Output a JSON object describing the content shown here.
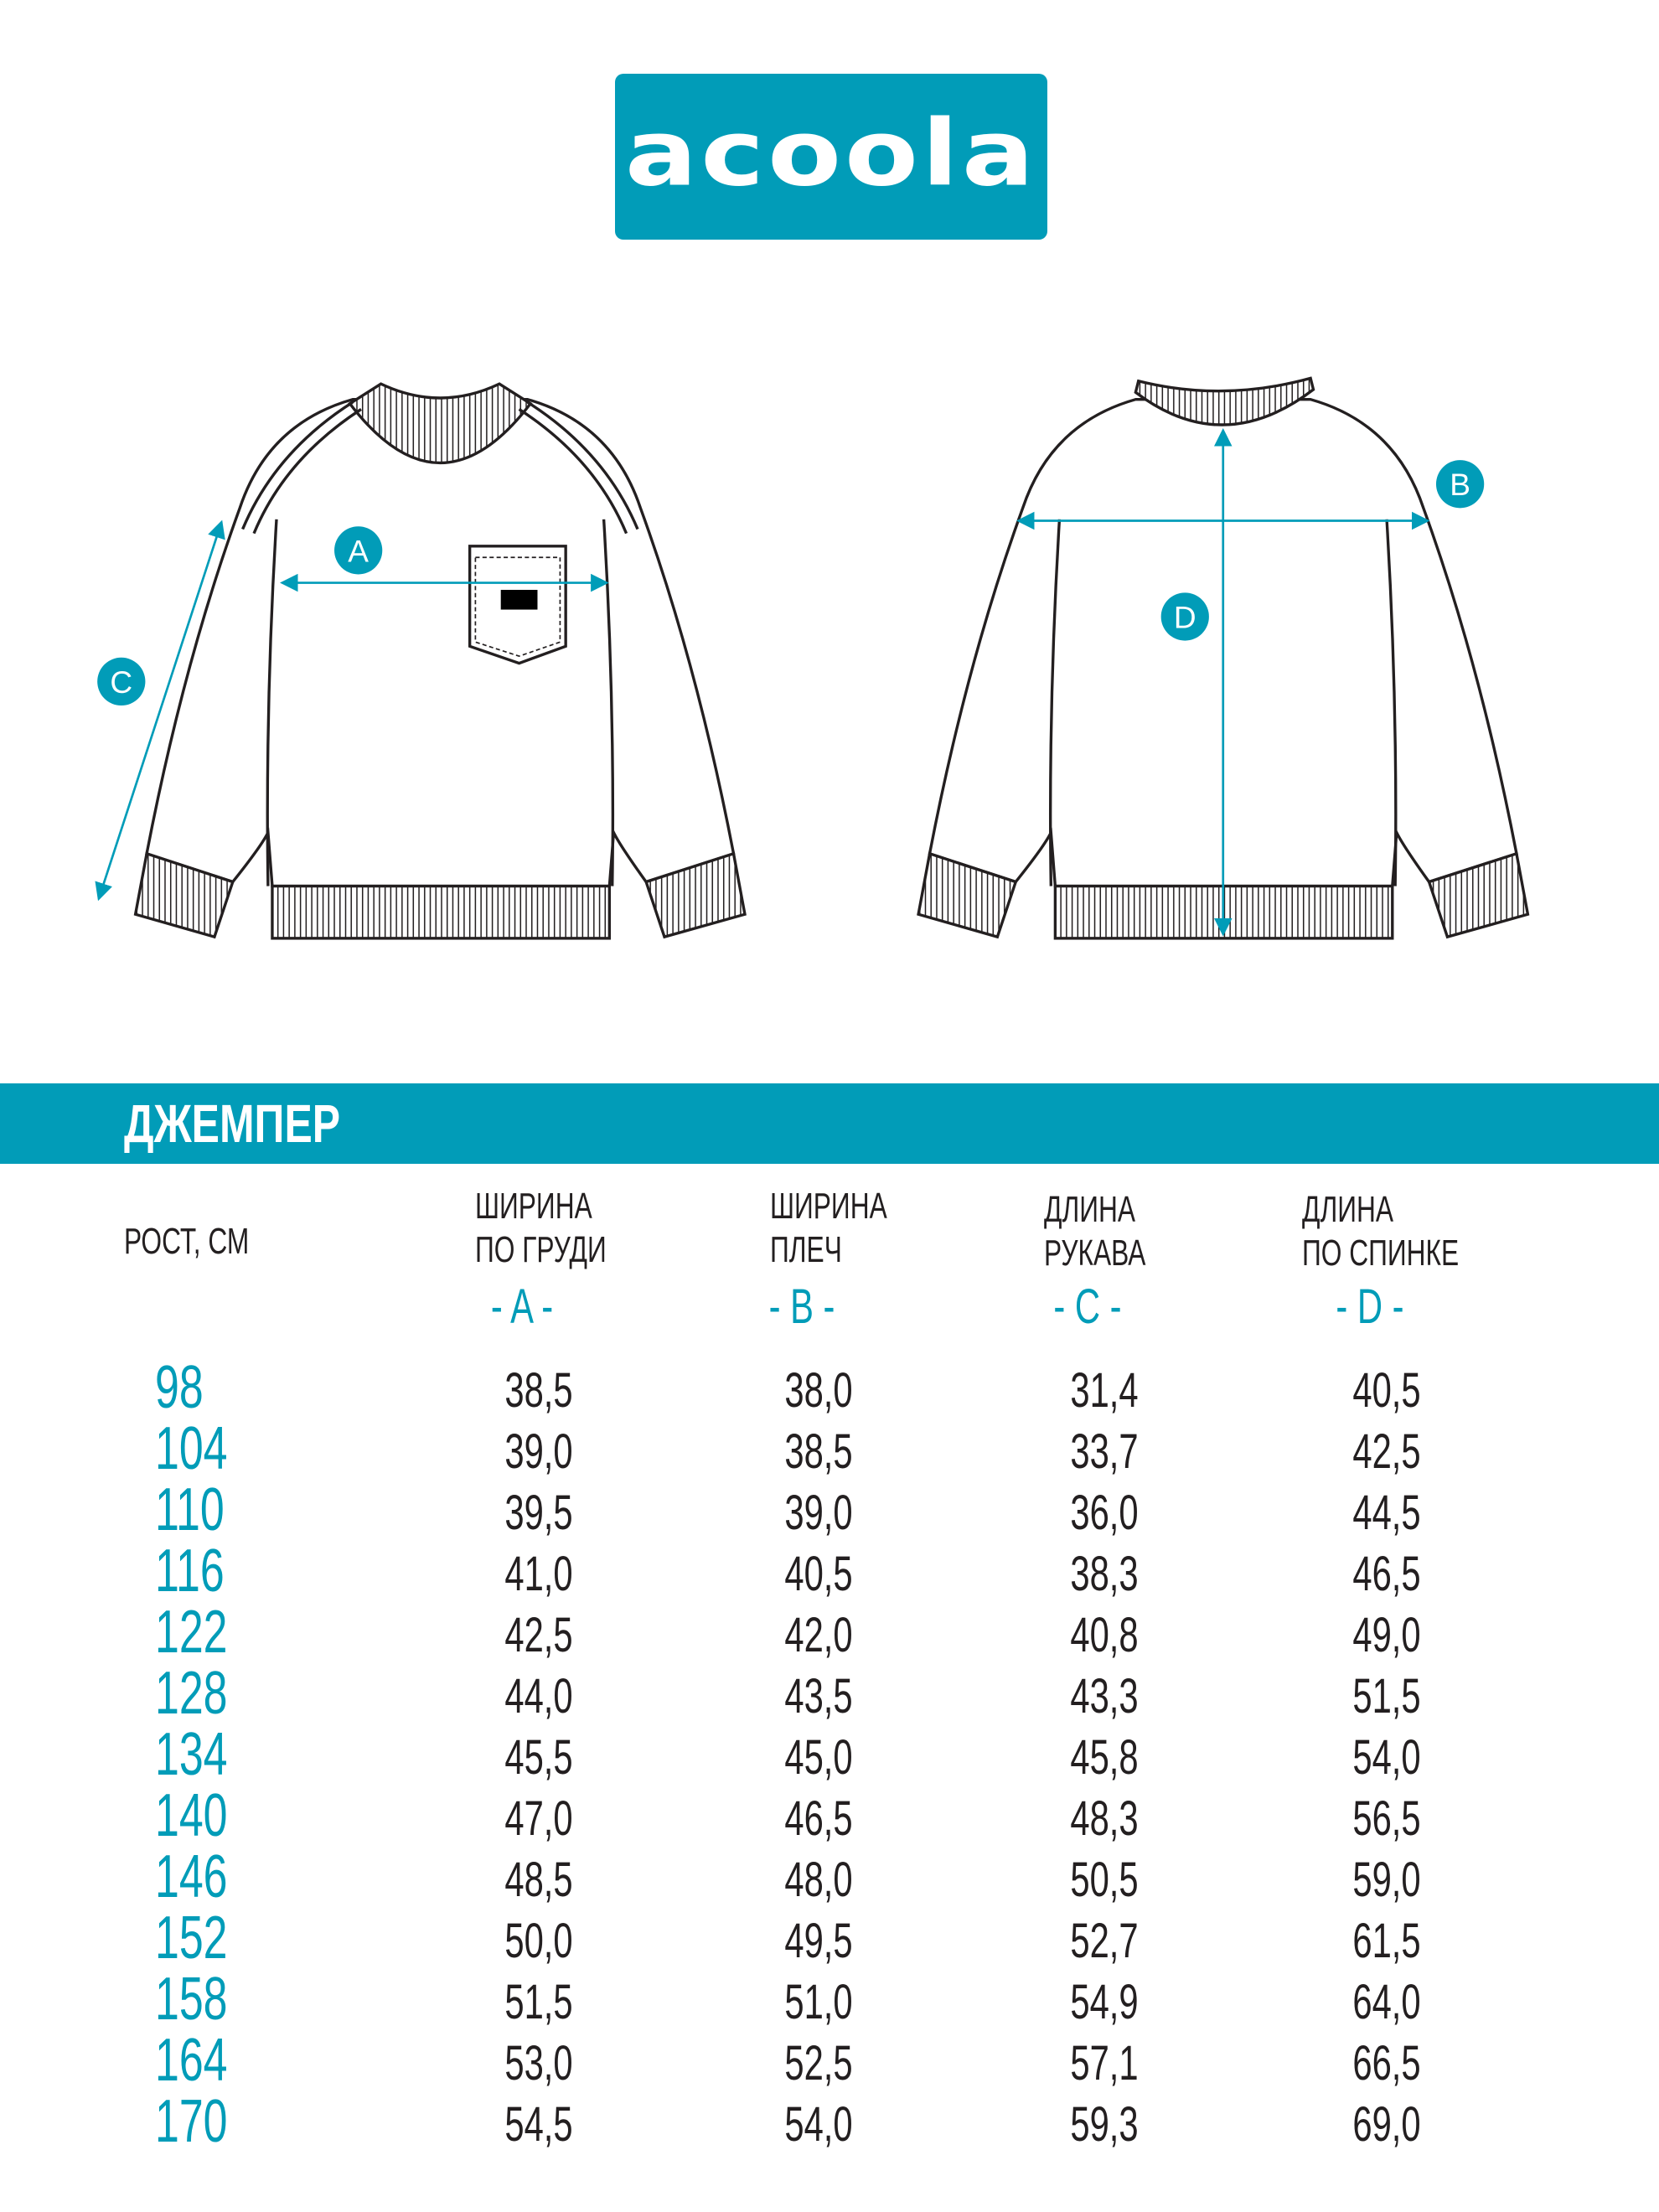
{
  "brand": {
    "logo_text": "acoola",
    "color": "#019cb8"
  },
  "diagram": {
    "labels": {
      "a": "A",
      "b": "B",
      "c": "C",
      "d": "D"
    }
  },
  "product": {
    "title": "ДЖЕМПЕР"
  },
  "table": {
    "size_header": "РОСТ, СМ",
    "columns": [
      {
        "line1": "ШИРИНА",
        "line2": "ПО ГРУДИ",
        "letter": "- A -"
      },
      {
        "line1": "ШИРИНА",
        "line2": "ПЛЕЧ",
        "letter": "- B -"
      },
      {
        "line1": "ДЛИНА",
        "line2": "РУКАВА",
        "letter": "- C -"
      },
      {
        "line1": "ДЛИНА",
        "line2": "ПО СПИНКЕ",
        "letter": "- D -"
      }
    ],
    "rows": [
      {
        "size": "98",
        "values": [
          "38,5",
          "38,0",
          "31,4",
          "40,5"
        ]
      },
      {
        "size": "104",
        "values": [
          "39,0",
          "38,5",
          "33,7",
          "42,5"
        ]
      },
      {
        "size": "110",
        "values": [
          "39,5",
          "39,0",
          "36,0",
          "44,5"
        ]
      },
      {
        "size": "116",
        "values": [
          "41,0",
          "40,5",
          "38,3",
          "46,5"
        ]
      },
      {
        "size": "122",
        "values": [
          "42,5",
          "42,0",
          "40,8",
          "49,0"
        ]
      },
      {
        "size": "128",
        "values": [
          "44,0",
          "43,5",
          "43,3",
          "51,5"
        ]
      },
      {
        "size": "134",
        "values": [
          "45,5",
          "45,0",
          "45,8",
          "54,0"
        ]
      },
      {
        "size": "140",
        "values": [
          "47,0",
          "46,5",
          "48,3",
          "56,5"
        ]
      },
      {
        "size": "146",
        "values": [
          "48,5",
          "48,0",
          "50,5",
          "59,0"
        ]
      },
      {
        "size": "152",
        "values": [
          "50,0",
          "49,5",
          "52,7",
          "61,5"
        ]
      },
      {
        "size": "158",
        "values": [
          "51,5",
          "51,0",
          "54,9",
          "64,0"
        ]
      },
      {
        "size": "164",
        "values": [
          "53,0",
          "52,5",
          "57,1",
          "66,5"
        ]
      },
      {
        "size": "170",
        "values": [
          "54,5",
          "54,0",
          "59,3",
          "69,0"
        ]
      }
    ]
  }
}
